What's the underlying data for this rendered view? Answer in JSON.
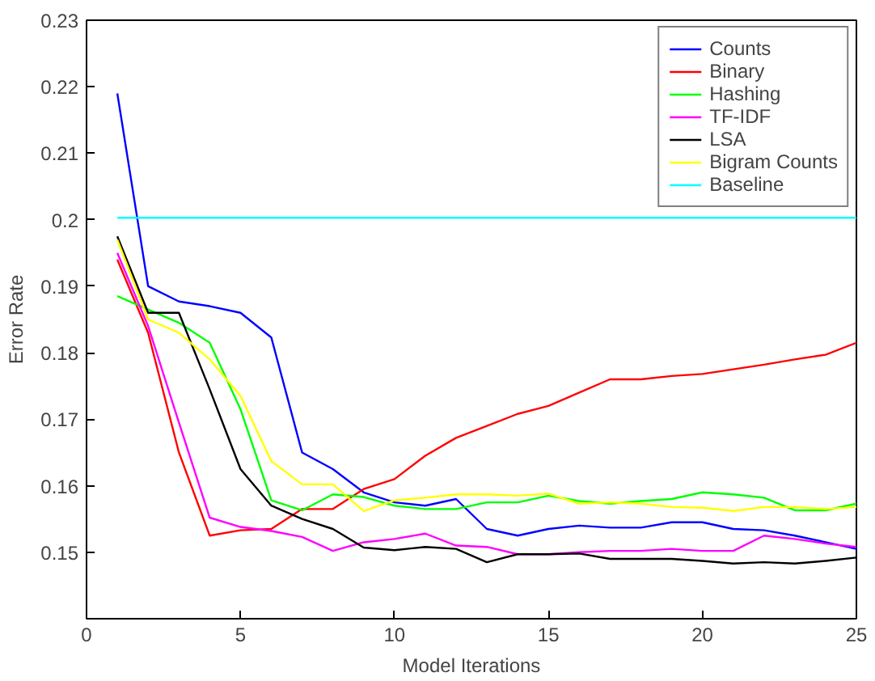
{
  "chart_data": {
    "type": "line",
    "xlabel": "Model Iterations",
    "ylabel": "Error Rate",
    "x": [
      1,
      2,
      3,
      4,
      5,
      6,
      7,
      8,
      9,
      10,
      11,
      12,
      13,
      14,
      15,
      16,
      17,
      18,
      19,
      20,
      21,
      22,
      23,
      24,
      25
    ],
    "xlim": [
      0,
      25
    ],
    "xticks": [
      0,
      5,
      10,
      15,
      20,
      25
    ],
    "ylim": [
      0.14,
      0.23
    ],
    "yticks": [
      0.15,
      0.16,
      0.17,
      0.18,
      0.19,
      0.2,
      0.21,
      0.22,
      0.23
    ],
    "grid": false,
    "legend": "top right",
    "line_style": "solid",
    "marker": "none",
    "series": [
      {
        "name": "Counts",
        "color": "#0000ff",
        "values": [
          0.219,
          0.19,
          0.1877,
          0.187,
          0.186,
          0.1823,
          0.165,
          0.1625,
          0.159,
          0.1575,
          0.157,
          0.158,
          0.1535,
          0.1525,
          0.1535,
          0.154,
          0.1537,
          0.1537,
          0.1545,
          0.1545,
          0.1535,
          0.1533,
          0.1525,
          0.1515,
          0.1505
        ]
      },
      {
        "name": "Binary",
        "color": "#ff0000",
        "values": [
          0.194,
          0.183,
          0.165,
          0.1525,
          0.1533,
          0.1535,
          0.1565,
          0.1565,
          0.1595,
          0.161,
          0.1645,
          0.1672,
          0.169,
          0.1708,
          0.172,
          0.174,
          0.176,
          0.176,
          0.1765,
          0.1768,
          0.1775,
          0.1782,
          0.179,
          0.1797,
          0.1815
        ]
      },
      {
        "name": "Hashing",
        "color": "#00ff00",
        "values": [
          0.1885,
          0.1865,
          0.1845,
          0.1815,
          0.1715,
          0.1578,
          0.1563,
          0.1587,
          0.1583,
          0.157,
          0.1565,
          0.1565,
          0.1575,
          0.1575,
          0.1585,
          0.1577,
          0.1573,
          0.1577,
          0.158,
          0.159,
          0.1587,
          0.1582,
          0.1563,
          0.1563,
          0.1573
        ]
      },
      {
        "name": "TF-IDF",
        "color": "#ff00ff",
        "values": [
          0.195,
          0.184,
          0.1695,
          0.1552,
          0.1538,
          0.1532,
          0.1523,
          0.1502,
          0.1515,
          0.152,
          0.1528,
          0.151,
          0.1508,
          0.1497,
          0.1497,
          0.15,
          0.1502,
          0.1502,
          0.1505,
          0.1502,
          0.1502,
          0.1525,
          0.152,
          0.1513,
          0.1508
        ]
      },
      {
        "name": "LSA",
        "color": "#000000",
        "values": [
          0.1975,
          0.186,
          0.186,
          0.1745,
          0.1625,
          0.157,
          0.155,
          0.1535,
          0.1507,
          0.1503,
          0.1508,
          0.1505,
          0.1485,
          0.1497,
          0.1497,
          0.1498,
          0.149,
          0.149,
          0.149,
          0.1487,
          0.1483,
          0.1485,
          0.1483,
          0.1487,
          0.1492
        ]
      },
      {
        "name": "Bigram Counts",
        "color": "#ffff00",
        "values": [
          0.197,
          0.185,
          0.183,
          0.179,
          0.1735,
          0.1637,
          0.1602,
          0.1602,
          0.1562,
          0.1578,
          0.1582,
          0.1587,
          0.1587,
          0.1585,
          0.1588,
          0.1573,
          0.1575,
          0.1573,
          0.1568,
          0.1567,
          0.1562,
          0.1568,
          0.1568,
          0.1565,
          0.1568
        ]
      },
      {
        "name": "Baseline",
        "color": "#00ffff",
        "values": [
          0.2003,
          0.2003,
          0.2003,
          0.2003,
          0.2003,
          0.2003,
          0.2003,
          0.2003,
          0.2003,
          0.2003,
          0.2003,
          0.2003,
          0.2003,
          0.2003,
          0.2003,
          0.2003,
          0.2003,
          0.2003,
          0.2003,
          0.2003,
          0.2003,
          0.2003,
          0.2003,
          0.2003,
          0.2003
        ]
      }
    ]
  }
}
